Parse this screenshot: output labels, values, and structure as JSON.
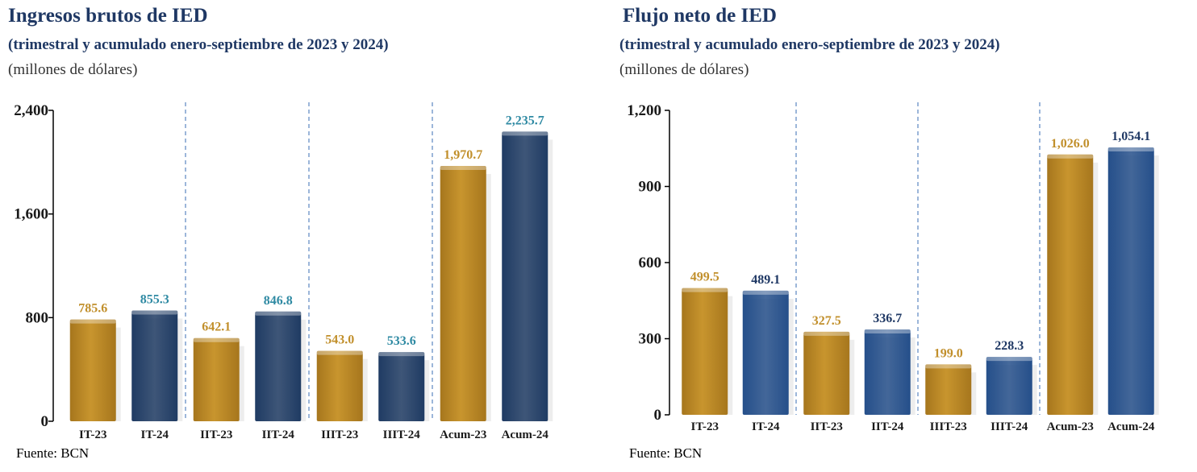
{
  "colors": {
    "gold": "#c8952e",
    "gold_dark": "#a6761d",
    "navy_left": "#1f3b63",
    "navy_right": "#254f8a",
    "label_gold": "#c18f2b",
    "label_teal": "#2f8aa3",
    "label_navy": "#1f3864",
    "divider": "#5a86c0"
  },
  "chart_data": [
    {
      "type": "bar",
      "title": "Ingresos brutos de IED",
      "subtitle": "(trimestral y acumulado enero-septiembre de 2023 y 2024)",
      "units": "(millones de dólares)",
      "source": "Fuente: BCN",
      "categories": [
        "IT-23",
        "IT-24",
        "IIT-23",
        "IIT-24",
        "IIIT-23",
        "IIIT-24",
        "Acum-23",
        "Acum-24"
      ],
      "values": [
        785.6,
        855.3,
        642.1,
        846.8,
        543.0,
        533.6,
        1970.7,
        2235.7
      ],
      "value_labels": [
        "785.6",
        "855.3",
        "642.1",
        "846.8",
        "543.0",
        "533.6",
        "1,970.7",
        "2,235.7"
      ],
      "yticks": [
        0,
        800,
        1600,
        2400
      ],
      "ytick_labels": [
        "0",
        "800",
        "1,600",
        "2,400"
      ],
      "ylim": [
        0,
        2400
      ],
      "grid": false,
      "legend": "none"
    },
    {
      "type": "bar",
      "title": "Flujo neto de IED",
      "subtitle": "(trimestral y acumulado enero-septiembre de 2023 y 2024)",
      "units": "(millones de dólares)",
      "source": "Fuente: BCN",
      "categories": [
        "IT-23",
        "IT-24",
        "IIT-23",
        "IIT-24",
        "IIIT-23",
        "IIIT-24",
        "Acum-23",
        "Acum-24"
      ],
      "values": [
        499.5,
        489.1,
        327.5,
        336.7,
        199.0,
        228.3,
        1026.0,
        1054.1
      ],
      "value_labels": [
        "499.5",
        "489.1",
        "327.5",
        "336.7",
        "199.0",
        "228.3",
        "1,026.0",
        "1,054.1"
      ],
      "yticks": [
        0,
        300,
        600,
        900,
        1200
      ],
      "ytick_labels": [
        "0",
        "300",
        "600",
        "900",
        "1,200"
      ],
      "ylim": [
        0,
        1200
      ],
      "grid": false,
      "legend": "none"
    }
  ]
}
